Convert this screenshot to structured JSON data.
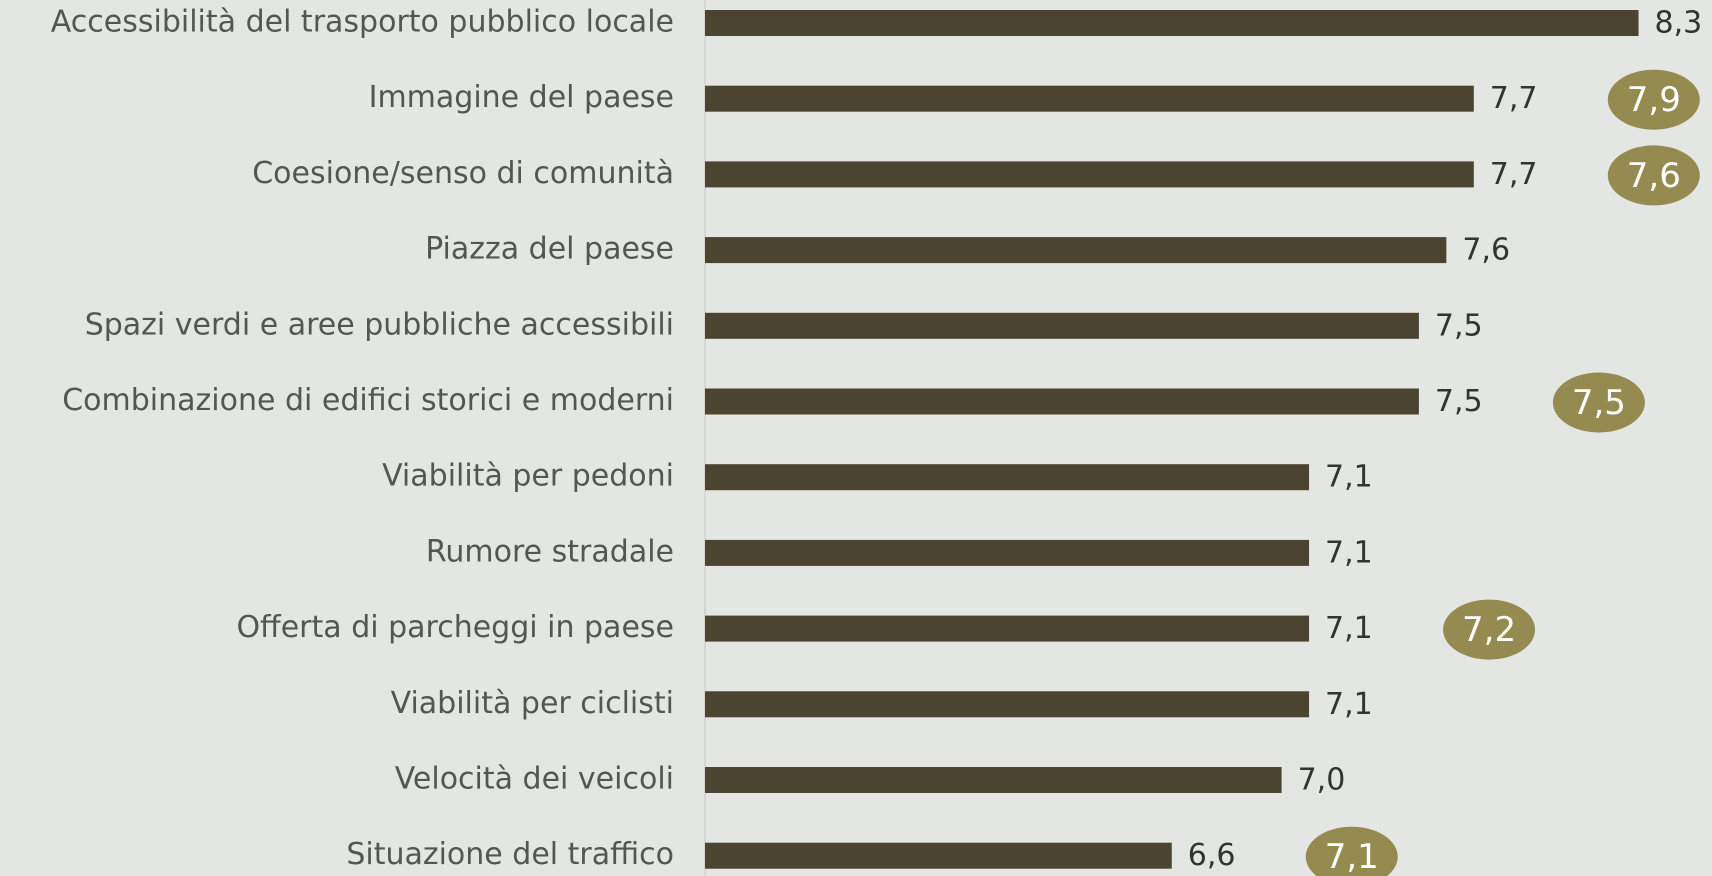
{
  "chart_data": {
    "type": "barh",
    "categories": [
      "Accessibilità del trasporto pubblico locale",
      "Immagine del paese",
      "Coesione/senso di comunità",
      "Piazza del paese",
      "Spazi verdi e aree pubbliche accessibili",
      "Combinazione di edifici storici e moderni",
      "Viabilità per pedoni",
      "Rumore stradale",
      "Offerta di parcheggi in paese",
      "Viabilità per ciclisti",
      "Velocità dei veicoli",
      "Situazione del traffico"
    ],
    "series": [
      {
        "color": "#4a4430",
        "values": [
          8.3,
          7.7,
          7.7,
          7.6,
          7.5,
          7.5,
          7.1,
          7.1,
          7.1,
          7.1,
          7.0,
          6.6
        ],
        "value_labels": [
          "8,3",
          "7,7",
          "7,7",
          "7,6",
          "7,5",
          "7,5",
          "7,1",
          "7,1",
          "7,1",
          "7,1",
          "7,0",
          "6,6"
        ]
      },
      {
        "color": "#958a50",
        "values": [
          null,
          7.9,
          7.6,
          null,
          null,
          7.5,
          null,
          null,
          7.2,
          null,
          null,
          7.1
        ],
        "value_labels": [
          null,
          "7,9",
          "7,6",
          null,
          null,
          "7,5",
          null,
          null,
          "7,2",
          null,
          null,
          "7,1"
        ]
      }
    ],
    "xlim": [
      4.9,
      8.4
    ]
  }
}
